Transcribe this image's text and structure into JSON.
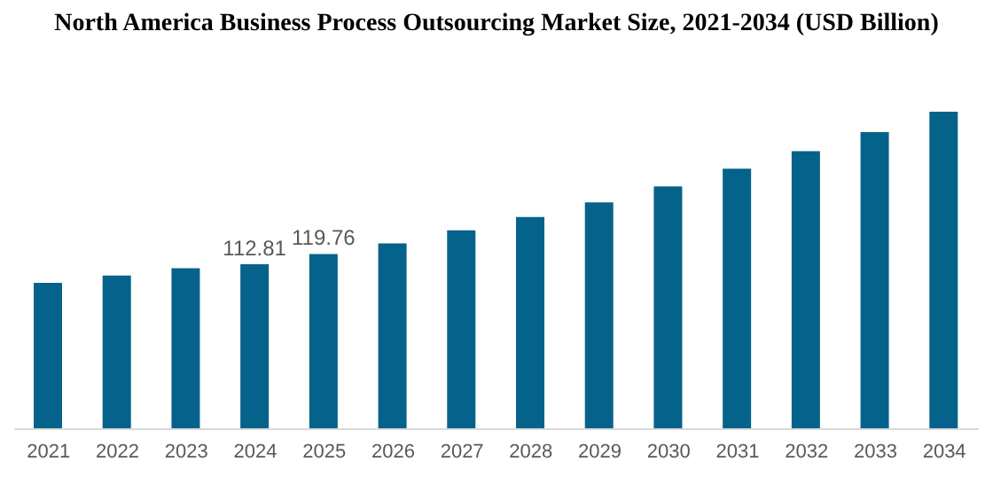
{
  "chart_data": {
    "type": "bar",
    "title": "North America Business Process Outsourcing Market Size, 2021-2034 (USD Billion)",
    "categories": [
      "2021",
      "2022",
      "2023",
      "2024",
      "2025",
      "2026",
      "2027",
      "2028",
      "2029",
      "2030",
      "2031",
      "2032",
      "2033",
      "2034"
    ],
    "values": [
      100,
      105,
      110,
      112.81,
      119.76,
      127,
      136,
      145,
      155,
      166,
      178,
      190,
      203,
      217
    ],
    "value_labels": [
      null,
      null,
      null,
      "112.81",
      "119.76",
      null,
      null,
      null,
      null,
      null,
      null,
      null,
      null,
      null
    ],
    "color": "#05628a",
    "grid": false,
    "legend": false
  }
}
